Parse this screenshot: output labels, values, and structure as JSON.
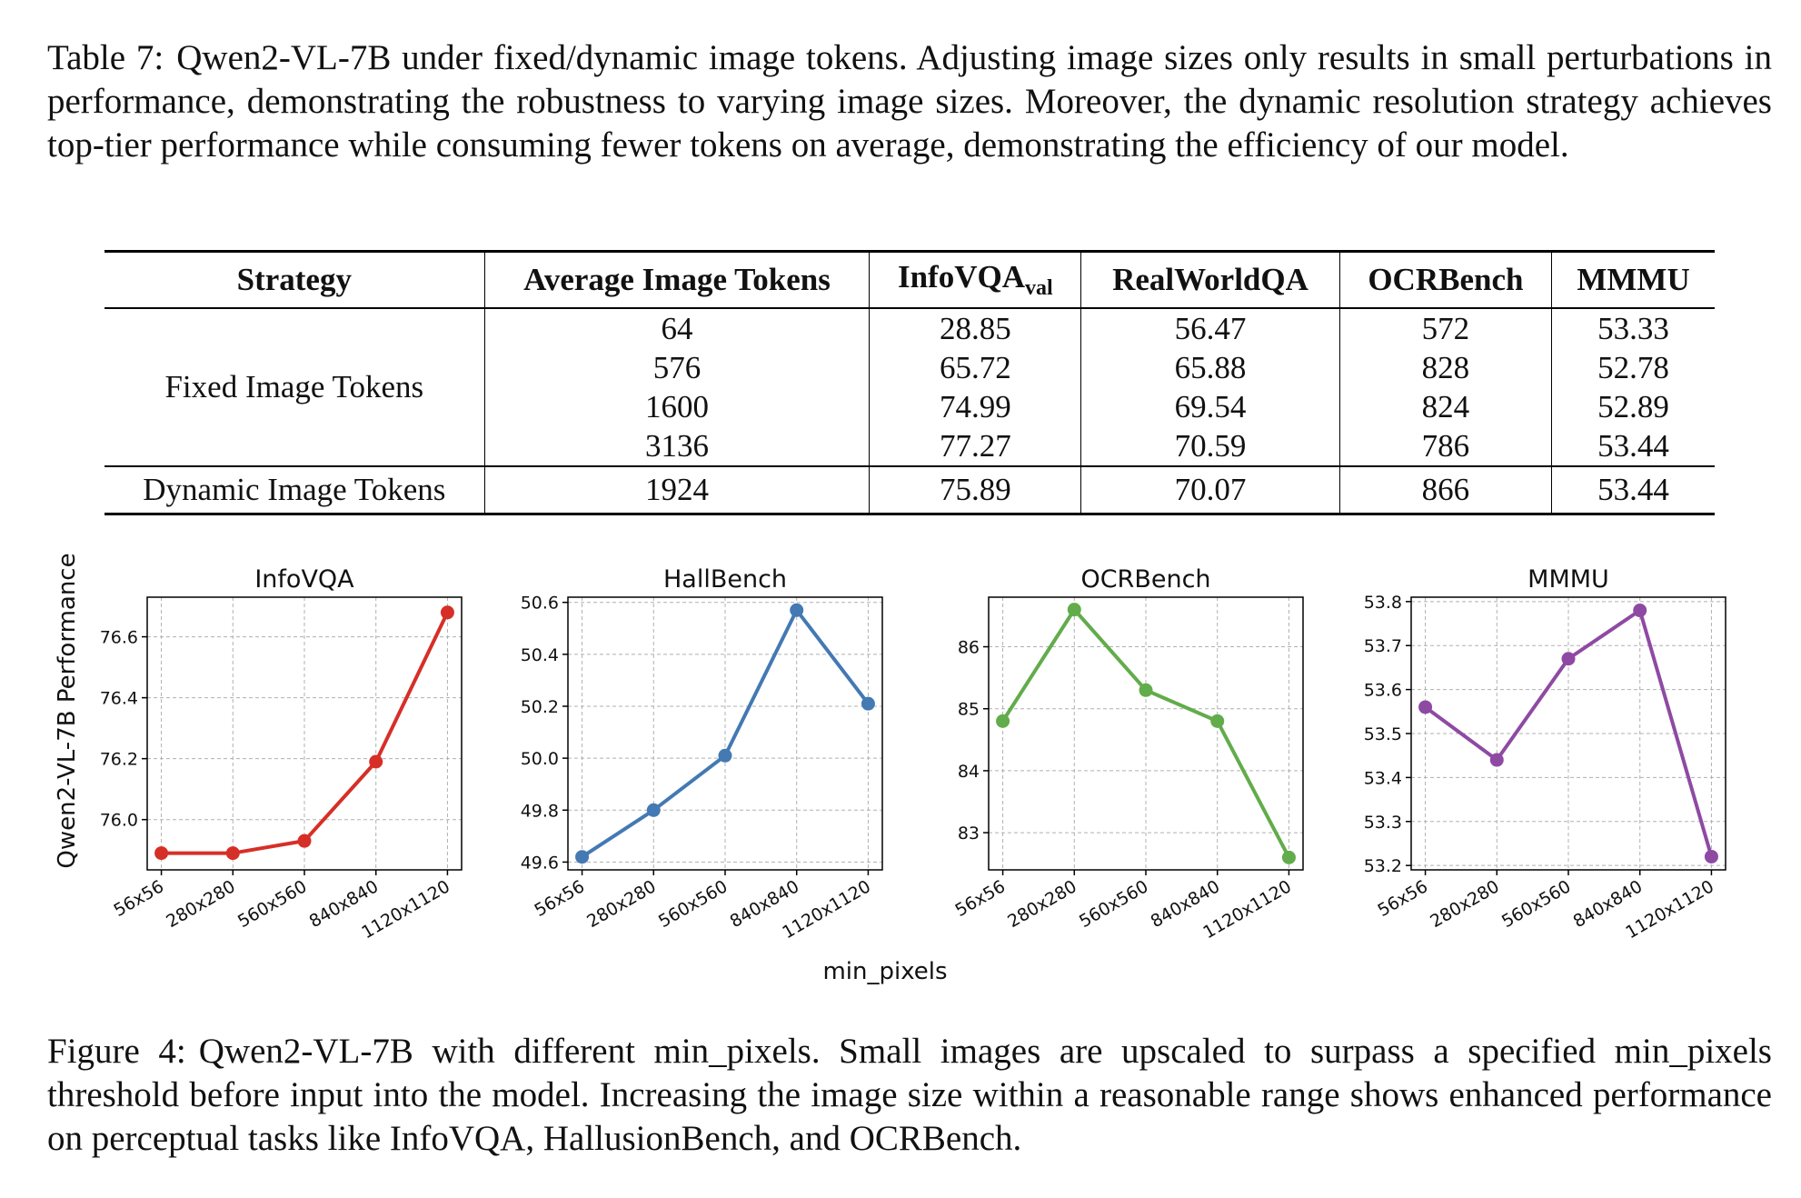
{
  "table_caption": {
    "label": "Table 7:",
    "text": "Qwen2-VL-7B under fixed/dynamic image tokens. Adjusting image sizes only results in small perturbations in performance, demonstrating the robustness to varying image sizes. Moreover, the dynamic resolution strategy achieves top-tier performance while consuming fewer tokens on average, demonstrating the efficiency of our model."
  },
  "table": {
    "headers": {
      "strategy": "Strategy",
      "avg_tokens": "Average Image Tokens",
      "infovqa": "InfoVQA",
      "infovqa_sub": "val",
      "realworldqa": "RealWorldQA",
      "ocrbench": "OCRBench",
      "mmmu": "MMMU"
    },
    "fixed_label": "Fixed Image Tokens",
    "fixed_rows": [
      [
        "64",
        "28.85",
        "56.47",
        "572",
        "53.33"
      ],
      [
        "576",
        "65.72",
        "65.88",
        "828",
        "52.78"
      ],
      [
        "1600",
        "74.99",
        "69.54",
        "824",
        "52.89"
      ],
      [
        "3136",
        "77.27",
        "70.59",
        "786",
        "53.44"
      ]
    ],
    "dynamic_label": "Dynamic Image Tokens",
    "dynamic_row": [
      "1924",
      "75.89",
      "70.07",
      "866",
      "53.44"
    ]
  },
  "figure": {
    "ylabel": "Qwen2-VL-7B Performance",
    "xlabel": "min_pixels"
  },
  "chart_data": [
    {
      "type": "line",
      "title": "InfoVQA",
      "categories": [
        "56x56",
        "280x280",
        "560x560",
        "840x840",
        "1120x1120"
      ],
      "values": [
        75.89,
        75.89,
        75.93,
        76.19,
        76.68
      ],
      "ylim": [
        75.835,
        76.73
      ],
      "yticks": [
        76.0,
        76.2,
        76.4,
        76.6
      ],
      "ytick_labels": [
        "76.0",
        "76.2",
        "76.4",
        "76.6"
      ],
      "color": "#d62f27",
      "grid": true
    },
    {
      "type": "line",
      "title": "HallBench",
      "categories": [
        "56x56",
        "280x280",
        "560x560",
        "840x840",
        "1120x1120"
      ],
      "values": [
        49.62,
        49.8,
        50.01,
        50.57,
        50.21
      ],
      "ylim": [
        49.57,
        50.62
      ],
      "yticks": [
        49.6,
        49.8,
        50.0,
        50.2,
        50.4,
        50.6
      ],
      "ytick_labels": [
        "49.6",
        "49.8",
        "50.0",
        "50.2",
        "50.4",
        "50.6"
      ],
      "color": "#4479b3",
      "grid": true
    },
    {
      "type": "line",
      "title": "OCRBench",
      "categories": [
        "56x56",
        "280x280",
        "560x560",
        "840x840",
        "1120x1120"
      ],
      "values": [
        84.8,
        86.6,
        85.3,
        84.8,
        82.6
      ],
      "ylim": [
        82.4,
        86.8
      ],
      "yticks": [
        83,
        84,
        85,
        86
      ],
      "ytick_labels": [
        "83",
        "84",
        "85",
        "86"
      ],
      "color": "#62ac4b",
      "grid": true
    },
    {
      "type": "line",
      "title": "MMMU",
      "categories": [
        "56x56",
        "280x280",
        "560x560",
        "840x840",
        "1120x1120"
      ],
      "values": [
        53.56,
        53.44,
        53.67,
        53.78,
        53.22
      ],
      "ylim": [
        53.19,
        53.81
      ],
      "yticks": [
        53.2,
        53.3,
        53.4,
        53.5,
        53.6,
        53.7,
        53.8
      ],
      "ytick_labels": [
        "53.2",
        "53.3",
        "53.4",
        "53.5",
        "53.6",
        "53.7",
        "53.8"
      ],
      "color": "#8e4aa3",
      "grid": true
    }
  ],
  "figure_caption": {
    "label": "Figure 4:",
    "text": "Qwen2-VL-7B with different min_pixels. Small images are upscaled to surpass a specified min_pixels threshold before input into the model. Increasing the image size within a reasonable range shows enhanced performance on perceptual tasks like InfoVQA, HallusionBench, and OCRBench."
  }
}
